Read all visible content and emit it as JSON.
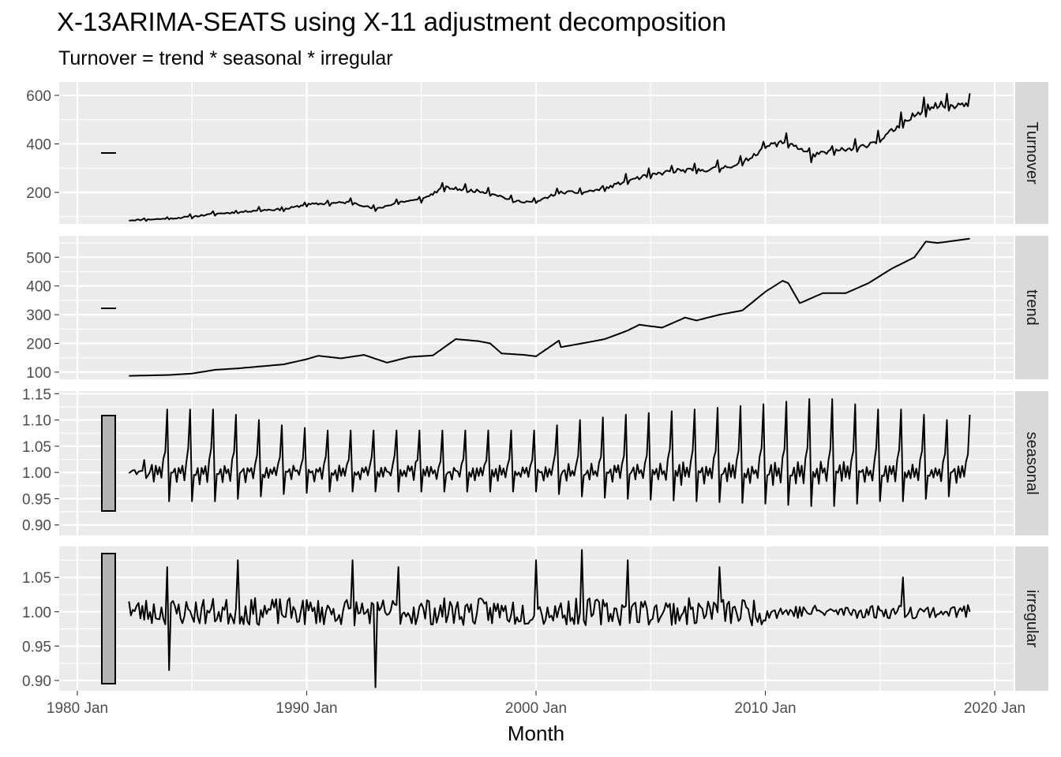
{
  "chart_data": {
    "type": "line",
    "title": "X-13ARIMA-SEATS using X-11 adjustment decomposition",
    "subtitle": "Turnover = trend * seasonal * irregular",
    "xlabel": "Month",
    "x_range": [
      "1982 Apr",
      "2018 Dec"
    ],
    "x_ticks": [
      "1980 Jan",
      "1990 Jan",
      "2000 Jan",
      "2010 Jan",
      "2020 Jan"
    ],
    "colors": {
      "panel_bg": "#ebebeb",
      "grid": "#ffffff",
      "strip_bg": "#d9d9d9",
      "line": "#000000",
      "scale_bar": "#b3b3b3"
    },
    "grid": true,
    "panels": [
      {
        "name": "Turnover",
        "yticks": [
          200,
          400,
          600
        ],
        "ylim": [
          70,
          655
        ],
        "points": [
          [
            "1982 Apr",
            85
          ],
          [
            "1983 Jan",
            88
          ],
          [
            "1984 Jan",
            92
          ],
          [
            "1985 Jan",
            100
          ],
          [
            "1986 Jan",
            112
          ],
          [
            "1987 Jan",
            118
          ],
          [
            "1988 Jan",
            128
          ],
          [
            "1989 Jan",
            130
          ],
          [
            "1990 Jan",
            150
          ],
          [
            "1991 Jan",
            155
          ],
          [
            "1992 Jan",
            160
          ],
          [
            "1993 Jan",
            130
          ],
          [
            "1994 Jan",
            160
          ],
          [
            "1995 Jan",
            170
          ],
          [
            "1996 Jan",
            220
          ],
          [
            "1997 Jan",
            210
          ],
          [
            "1998 Jan",
            200
          ],
          [
            "1999 Jan",
            165
          ],
          [
            "2000 Jan",
            160
          ],
          [
            "2001 Jan",
            200
          ],
          [
            "2002 Jan",
            200
          ],
          [
            "2003 Jan",
            215
          ],
          [
            "2004 Jan",
            250
          ],
          [
            "2005 Jan",
            270
          ],
          [
            "2006 Jan",
            290
          ],
          [
            "2007 Jan",
            290
          ],
          [
            "2008 Jan",
            300
          ],
          [
            "2009 Jan",
            320
          ],
          [
            "2010 Jan",
            390
          ],
          [
            "2011 Jan",
            410
          ],
          [
            "2012 Jan",
            350
          ],
          [
            "2013 Jan",
            370
          ],
          [
            "2014 Jan",
            380
          ],
          [
            "2015 Jan",
            420
          ],
          [
            "2016 Jan",
            480
          ],
          [
            "2017 Jan",
            555
          ],
          [
            "2018 Jan",
            560
          ],
          [
            "2018 Dec",
            570
          ]
        ]
      },
      {
        "name": "trend",
        "yticks": [
          100,
          200,
          300,
          400,
          500
        ],
        "ylim": [
          75,
          575
        ],
        "points": [
          [
            "1982 Apr",
            87
          ],
          [
            "1984 Jan",
            90
          ],
          [
            "1985 Jan",
            95
          ],
          [
            "1986 Jan",
            108
          ],
          [
            "1987 Jan",
            113
          ],
          [
            "1988 Jan",
            120
          ],
          [
            "1989 Jan",
            127
          ],
          [
            "1990 Jan",
            145
          ],
          [
            "1990 Jul",
            157
          ],
          [
            "1991 Jul",
            148
          ],
          [
            "1992 Jul",
            160
          ],
          [
            "1993 Jul",
            133
          ],
          [
            "1994 Jul",
            153
          ],
          [
            "1995 Jul",
            158
          ],
          [
            "1996 Jul",
            215
          ],
          [
            "1997 Jul",
            208
          ],
          [
            "1998 Jan",
            200
          ],
          [
            "1998 Jul",
            165
          ],
          [
            "1999 Jul",
            160
          ],
          [
            "2000 Jan",
            155
          ],
          [
            "2001 Jan",
            210
          ],
          [
            "2001 Feb",
            187
          ],
          [
            "2002 Jan",
            200
          ],
          [
            "2003 Jan",
            215
          ],
          [
            "2004 Jan",
            245
          ],
          [
            "2004 Jul",
            265
          ],
          [
            "2005 Jul",
            255
          ],
          [
            "2006 Jul",
            290
          ],
          [
            "2007 Jan",
            280
          ],
          [
            "2008 Jan",
            300
          ],
          [
            "2009 Jan",
            315
          ],
          [
            "2010 Jan",
            380
          ],
          [
            "2010 Oct",
            418
          ],
          [
            "2011 Jan",
            410
          ],
          [
            "2011 Jul",
            340
          ],
          [
            "2012 Jul",
            375
          ],
          [
            "2013 Jul",
            375
          ],
          [
            "2014 Jul",
            410
          ],
          [
            "2015 Jul",
            460
          ],
          [
            "2016 Jul",
            500
          ],
          [
            "2017 Jan",
            555
          ],
          [
            "2017 Jul",
            550
          ],
          [
            "2018 Jan",
            555
          ],
          [
            "2018 Dec",
            565
          ]
        ]
      },
      {
        "name": "seasonal",
        "yticks": [
          0.9,
          0.95,
          1.0,
          1.05,
          1.1,
          1.15
        ],
        "ylim": [
          0.88,
          1.155
        ],
        "points": [
          [
            "1982 Apr",
            0.96
          ],
          [
            "1983 Dec",
            1.12
          ],
          [
            "1984 Dec",
            1.12
          ],
          [
            "1985 Dec",
            1.12
          ],
          [
            "1986 Dec",
            1.11
          ],
          [
            "1987 Dec",
            1.1
          ],
          [
            "1988 Dec",
            1.09
          ],
          [
            "1990 Dec",
            1.08
          ],
          [
            "1995 Dec",
            1.08
          ],
          [
            "1996 Dec",
            1.08
          ],
          [
            "1999 Dec",
            1.08
          ],
          [
            "2001 Dec",
            1.1
          ],
          [
            "2003 Dec",
            1.11
          ],
          [
            "2006 Dec",
            1.12
          ],
          [
            "2009 Dec",
            1.13
          ],
          [
            "2011 Dec",
            1.14
          ],
          [
            "2012 Dec",
            1.14
          ],
          [
            "2013 Dec",
            1.13
          ],
          [
            "2014 Dec",
            1.12
          ],
          [
            "2015 Dec",
            1.12
          ],
          [
            "2016 Dec",
            1.11
          ],
          [
            "2017 Dec",
            1.1
          ],
          [
            "2018 Dec",
            1.11
          ]
        ]
      },
      {
        "name": "irregular",
        "yticks": [
          0.9,
          0.95,
          1.0,
          1.05
        ],
        "ylim": [
          0.885,
          1.095
        ],
        "points": [
          [
            "1982 Apr",
            1.015
          ],
          [
            "1983 Dec",
            1.065
          ],
          [
            "1984 Jan",
            0.915
          ],
          [
            "1987 Jan",
            1.075
          ],
          [
            "1992 Jan",
            1.075
          ],
          [
            "1993 Jan",
            0.89
          ],
          [
            "1994 Jan",
            1.065
          ],
          [
            "2000 Jan",
            1.075
          ],
          [
            "2002 Jan",
            1.09
          ],
          [
            "2004 Jan",
            1.075
          ],
          [
            "2008 Jan",
            1.065
          ],
          [
            "2016 Jan",
            1.05
          ],
          [
            "2018 Dec",
            1.0
          ]
        ]
      }
    ]
  }
}
